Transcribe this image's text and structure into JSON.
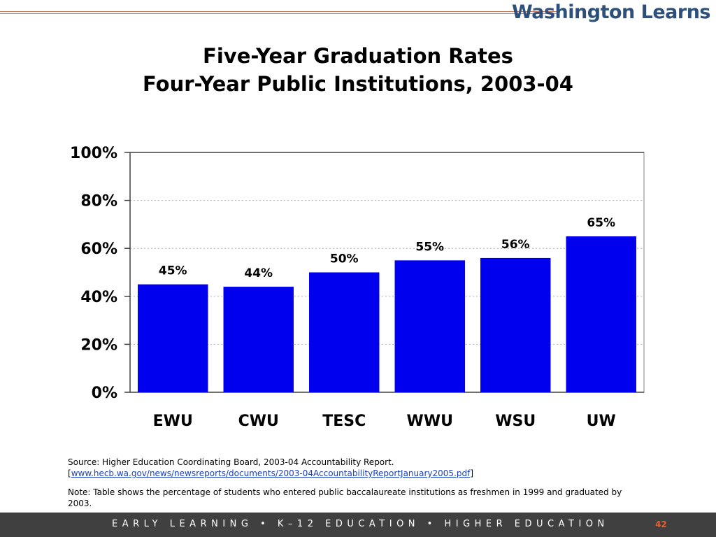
{
  "logo_text": "Washington Learns",
  "title_line1": "Five-Year Graduation Rates",
  "title_line2": "Four-Year Public Institutions, 2003-04",
  "source": {
    "prefix": "Source: Higher Education Coordinating Board, 2003-04 Accountability Report.",
    "open_bracket": "[",
    "link_text": "www.hecb.wa.gov/news/newsreports/documents/2003-04AccountabilityReportJanuary2005.pdf",
    "close_bracket": "]"
  },
  "note": "Note: Table shows the percentage of students who entered public baccalaureate institutions as freshmen in 1999 and graduated by 2003.",
  "footer": {
    "text": "EARLY LEARNING  •  K–12 EDUCATION  •  HIGHER EDUCATION",
    "page_number": "42"
  },
  "chart_data": {
    "type": "bar",
    "title": "Five-Year Graduation Rates Four-Year Public Institutions, 2003-04",
    "categories": [
      "EWU",
      "CWU",
      "TESC",
      "WWU",
      "WSU",
      "UW"
    ],
    "values": [
      45,
      44,
      50,
      55,
      56,
      65
    ],
    "data_labels": [
      "45%",
      "44%",
      "50%",
      "55%",
      "56%",
      "65%"
    ],
    "ylim": [
      0,
      100
    ],
    "y_ticks": [
      0,
      20,
      40,
      60,
      80,
      100
    ],
    "y_tick_labels": [
      "0%",
      "20%",
      "40%",
      "60%",
      "80%",
      "100%"
    ],
    "bar_color": "#0000ee",
    "grid": true,
    "legend": "none"
  }
}
